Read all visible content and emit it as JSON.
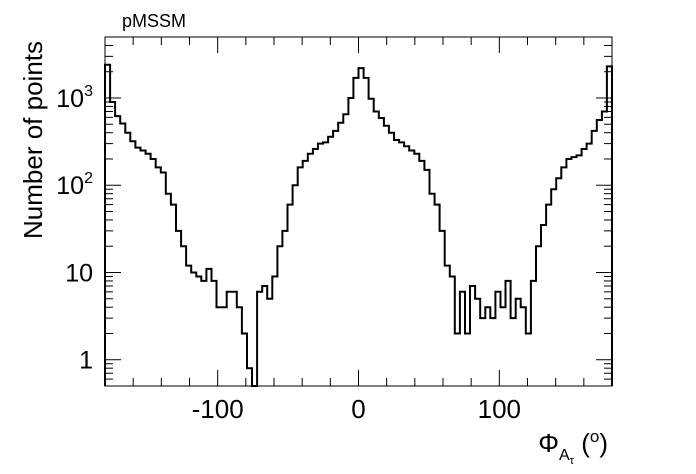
{
  "chart_data": {
    "type": "step",
    "title": "pMSSM",
    "xlabel": {
      "symbol": "Φ",
      "sub": "A",
      "subsub": "τ",
      "unit_open": " (",
      "unit_sup": "o",
      "unit_close": ")"
    },
    "ylabel": "Number of points",
    "xlim": [
      -180,
      180
    ],
    "ylim": [
      0.5,
      5000
    ],
    "yscale": "log",
    "bin_width": 3.6,
    "x_ticks": [
      -100,
      0,
      100
    ],
    "x_tick_labels": [
      "-100",
      "0",
      "100"
    ],
    "y_ticks": [
      1,
      10,
      100,
      1000
    ],
    "y_tick_labels": [
      {
        "base": "1",
        "exp": ""
      },
      {
        "base": "10",
        "exp": ""
      },
      {
        "base": "10",
        "exp": "2"
      },
      {
        "base": "10",
        "exp": "3"
      }
    ],
    "values": [
      2400,
      900,
      620,
      510,
      400,
      320,
      270,
      250,
      230,
      200,
      160,
      140,
      80,
      60,
      30,
      20,
      12,
      10,
      9,
      8,
      11,
      8,
      4,
      4,
      6,
      6,
      4,
      2,
      0.8,
      0,
      6,
      7,
      5,
      9,
      20,
      30,
      60,
      100,
      160,
      190,
      230,
      260,
      300,
      310,
      360,
      420,
      520,
      650,
      1000,
      1700,
      2200,
      1700,
      980,
      700,
      590,
      480,
      400,
      330,
      310,
      280,
      250,
      230,
      190,
      150,
      80,
      60,
      30,
      12,
      9,
      2,
      6,
      2,
      7,
      5,
      3,
      4,
      3,
      6,
      4,
      8,
      3,
      5,
      4,
      2,
      8,
      20,
      35,
      60,
      90,
      120,
      160,
      200,
      210,
      220,
      260,
      300,
      420,
      560,
      700,
      2300
    ]
  }
}
